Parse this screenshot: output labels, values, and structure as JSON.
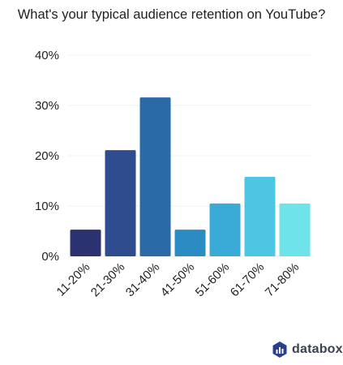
{
  "chart_data": {
    "type": "bar",
    "title": "What's your typical audience retention on YouTube?",
    "categories": [
      "11-20%",
      "21-30%",
      "31-40%",
      "41-50%",
      "51-60%",
      "61-70%",
      "71-80%"
    ],
    "values": [
      5.3,
      21.1,
      31.6,
      5.3,
      10.5,
      15.8,
      10.5
    ],
    "colors": [
      "#2b3270",
      "#2f4d8e",
      "#2a6aa6",
      "#2b8cc4",
      "#3aaad6",
      "#4cc6e2",
      "#6fe3ea"
    ],
    "ylim": [
      0,
      40
    ],
    "yticks": [
      "0%",
      "10%",
      "20%",
      "30%",
      "40%"
    ],
    "grid": true,
    "xlabel": "",
    "ylabel": ""
  },
  "brand": {
    "name": "databox",
    "icon": "databox-logo-icon"
  }
}
